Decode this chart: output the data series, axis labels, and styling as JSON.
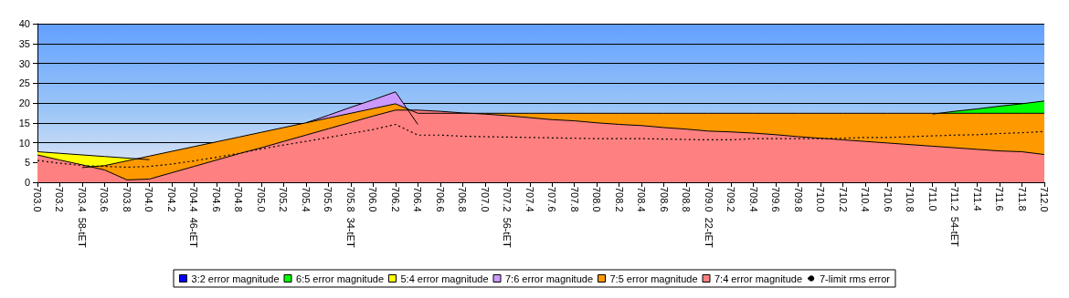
{
  "chart_data": {
    "type": "area",
    "categories": [
      "703.0",
      "703.2",
      "703.4  58-tET",
      "703.6",
      "703.8",
      "704.0",
      "704.2",
      "704.4  46-tET",
      "704.6",
      "704.8",
      "705.0",
      "705.2",
      "705.4",
      "705.6",
      "705.8  34-tET",
      "706.0",
      "706.2",
      "706.4",
      "706.6",
      "706.8",
      "707.0",
      "707.2  56-tET",
      "707.4",
      "707.6",
      "707.8",
      "708.0",
      "708.2",
      "708.4",
      "708.6",
      "708.8",
      "709.0  22-tET",
      "709.2",
      "709.4",
      "709.6",
      "709.8",
      "710.0",
      "710.2",
      "710.4",
      "710.6",
      "710.8",
      "711.0",
      "711.2  54-tET",
      "711.4",
      "711.6",
      "711.8",
      "712.0"
    ],
    "series": [
      {
        "name": "3:2 error magnitude",
        "color": "#0000ff",
        "values": [
          null,
          null,
          null,
          null,
          null,
          null,
          null,
          null,
          null,
          null,
          null,
          null,
          null,
          null,
          null,
          null,
          null,
          null,
          null,
          null,
          null,
          null,
          null,
          null,
          null,
          null,
          null,
          null,
          null,
          null,
          null,
          null,
          null,
          null,
          null,
          null,
          null,
          null,
          null,
          null,
          null,
          null,
          null,
          null,
          null,
          null
        ]
      },
      {
        "name": "6:5 error magnitude",
        "color": "#00ff00",
        "values": [
          null,
          null,
          null,
          null,
          null,
          null,
          null,
          null,
          null,
          null,
          null,
          null,
          null,
          null,
          null,
          null,
          null,
          null,
          null,
          null,
          null,
          null,
          null,
          null,
          null,
          null,
          null,
          null,
          null,
          null,
          null,
          null,
          null,
          null,
          null,
          null,
          null,
          null,
          null,
          null,
          17.2,
          17.9,
          18.5,
          19.2,
          19.8,
          20.5
        ]
      },
      {
        "name": "5:4 error magnitude",
        "color": "#ffff00",
        "values": [
          7.7,
          7.3,
          6.9,
          6.5,
          6.1,
          5.7,
          null,
          null,
          null,
          null,
          null,
          null,
          null,
          null,
          null,
          null,
          null,
          null,
          null,
          null,
          null,
          null,
          null,
          null,
          null,
          null,
          null,
          null,
          null,
          null,
          null,
          null,
          null,
          null,
          null,
          null,
          null,
          null,
          null,
          null,
          null,
          null,
          null,
          null,
          null,
          null
        ]
      },
      {
        "name": "7:6 error magnitude",
        "color": "#cc99ff",
        "values": [
          null,
          null,
          null,
          null,
          null,
          null,
          null,
          null,
          null,
          null,
          null,
          null,
          15.0,
          16.9,
          18.9,
          20.8,
          22.8,
          14.6,
          null,
          null,
          null,
          null,
          null,
          null,
          null,
          null,
          null,
          null,
          null,
          null,
          null,
          null,
          null,
          null,
          null,
          null,
          null,
          null,
          null,
          null,
          null,
          null,
          null,
          null,
          null,
          null
        ]
      },
      {
        "name": "7:5 error magnitude",
        "color": "#ff9900",
        "values": [
          null,
          null,
          3.7,
          4.2,
          5.4,
          6.6,
          7.8,
          9.0,
          10.2,
          11.4,
          12.6,
          13.8,
          15.0,
          16.2,
          17.4,
          18.6,
          19.8,
          17.4,
          17.4,
          17.4,
          17.4,
          17.4,
          17.4,
          17.4,
          17.4,
          17.4,
          17.4,
          17.4,
          17.4,
          17.4,
          17.4,
          17.4,
          17.4,
          17.4,
          17.4,
          17.4,
          17.4,
          17.4,
          17.4,
          17.4,
          17.4,
          17.4,
          17.4,
          17.4,
          17.4,
          17.4
        ]
      },
      {
        "name": "7:4 error magnitude",
        "color": "#ff8080",
        "values": [
          6.9,
          5.6,
          4.4,
          3.1,
          0.6,
          0.8,
          2.4,
          4.0,
          5.6,
          7.2,
          8.7,
          10.3,
          11.9,
          13.5,
          15.1,
          16.7,
          18.2,
          18.2,
          17.9,
          17.5,
          17.2,
          16.8,
          16.3,
          15.8,
          15.5,
          15.0,
          14.6,
          14.3,
          13.8,
          13.4,
          12.9,
          12.7,
          12.4,
          12.0,
          11.5,
          11.1,
          10.7,
          10.3,
          9.9,
          9.5,
          9.1,
          8.7,
          8.3,
          7.9,
          7.7,
          7.0
        ]
      },
      {
        "name": "7-limit rms error",
        "type": "line",
        "color": "#000000",
        "line_style": "dotted",
        "values": [
          5.5,
          4.8,
          4.2,
          4.0,
          3.8,
          4.0,
          4.6,
          5.4,
          6.3,
          7.3,
          8.4,
          9.4,
          10.3,
          11.3,
          12.3,
          13.3,
          14.6,
          11.9,
          11.9,
          11.6,
          11.5,
          11.4,
          11.3,
          11.2,
          11.1,
          11.0,
          11.0,
          11.0,
          10.9,
          10.8,
          10.7,
          10.7,
          11.0,
          11.0,
          11.0,
          11.0,
          11.1,
          11.3,
          11.3,
          11.5,
          11.7,
          11.9,
          12.0,
          12.3,
          12.5,
          12.8
        ]
      }
    ],
    "ylim": [
      0,
      40
    ],
    "yticks": [
      0,
      5,
      10,
      15,
      20,
      25,
      30,
      35,
      40
    ],
    "grid": "y",
    "legend": "bottom",
    "marker": "none"
  }
}
